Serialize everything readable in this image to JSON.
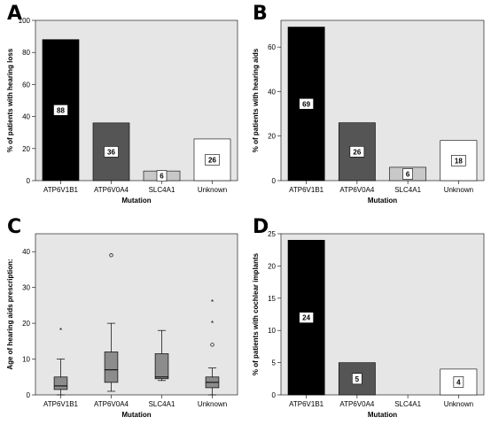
{
  "chart_data": [
    {
      "panel": "A",
      "type": "bar",
      "categories": [
        "ATP6V1B1",
        "ATP6V0A4",
        "SLC4A1",
        "Unknown"
      ],
      "values": [
        88,
        36,
        6,
        26
      ],
      "data_labels": [
        "88",
        "36",
        "6",
        "26"
      ],
      "xlabel": "Mutation",
      "ylabel": "% of patients with hearing loss",
      "ylim": [
        0,
        100
      ],
      "yticks": [
        0,
        20,
        40,
        60,
        80,
        100
      ],
      "grid": false,
      "colors": [
        "#000000",
        "#555555",
        "#c8c8c8",
        "#ffffff"
      ]
    },
    {
      "panel": "B",
      "type": "bar",
      "categories": [
        "ATP6V1B1",
        "ATP6V0A4",
        "SLC4A1",
        "Unknown"
      ],
      "values": [
        69,
        26,
        6,
        18
      ],
      "data_labels": [
        "69",
        "26",
        "6",
        "18"
      ],
      "xlabel": "Mutation",
      "ylabel": "% of patients with hearing aids",
      "ylim": [
        0,
        72
      ],
      "yticks": [
        0,
        20,
        40,
        60
      ],
      "grid": false,
      "colors": [
        "#000000",
        "#555555",
        "#c8c8c8",
        "#ffffff"
      ]
    },
    {
      "panel": "C",
      "type": "boxplot",
      "categories": [
        "ATP6V1B1",
        "ATP6V0A4",
        "SLC4A1",
        "Unknown"
      ],
      "boxes": [
        {
          "whisker_low": 0,
          "q1": 1.5,
          "median": 2.5,
          "q3": 5,
          "whisker_high": 10,
          "outliers": [],
          "extremes": [
            18
          ]
        },
        {
          "whisker_low": 1,
          "q1": 3.5,
          "median": 7,
          "q3": 12,
          "whisker_high": 20,
          "outliers": [
            39
          ],
          "extremes": []
        },
        {
          "whisker_low": 4,
          "q1": 4.5,
          "median": 5,
          "q3": 11.5,
          "whisker_high": 18,
          "outliers": [],
          "extremes": []
        },
        {
          "whisker_low": 0,
          "q1": 2,
          "median": 3.5,
          "q3": 5,
          "whisker_high": 7.5,
          "outliers": [
            14
          ],
          "extremes": [
            20,
            26
          ]
        }
      ],
      "xlabel": "Mutation",
      "ylabel": "Age of hearing aids prescription:",
      "ylim": [
        0,
        45
      ],
      "yticks": [
        0,
        10,
        20,
        30,
        40
      ],
      "grid": false,
      "colors": [
        "#8c8c8c"
      ]
    },
    {
      "panel": "D",
      "type": "bar",
      "categories": [
        "ATP6V1B1",
        "ATP6V0A4",
        "SLC4A1",
        "Unknown"
      ],
      "values": [
        24,
        5,
        0,
        4
      ],
      "data_labels": [
        "24",
        "5",
        "",
        "4"
      ],
      "xlabel": "Mutation",
      "ylabel": "% of patients with cochlear implants",
      "ylim": [
        0,
        25
      ],
      "yticks": [
        0,
        5,
        10,
        15,
        20,
        25
      ],
      "grid": false,
      "colors": [
        "#000000",
        "#555555",
        "#c8c8c8",
        "#ffffff"
      ]
    }
  ],
  "panel_background": "#e6e6e6"
}
